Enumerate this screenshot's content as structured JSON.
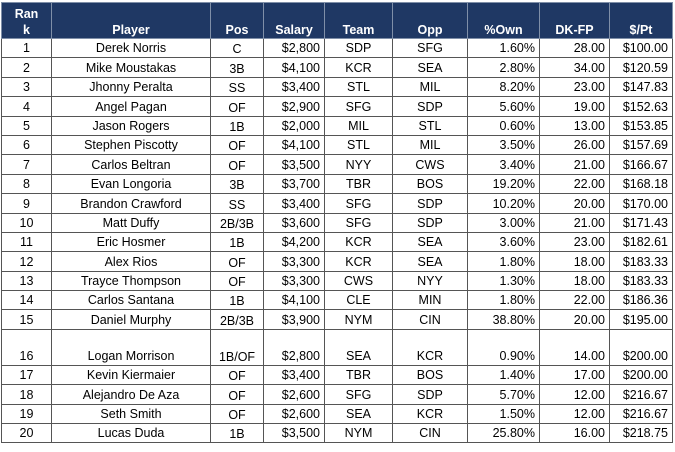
{
  "table": {
    "headers": {
      "rank": "Rank",
      "player": "Player",
      "pos": "Pos",
      "salary": "Salary",
      "team": "Team",
      "opp": "Opp",
      "own": "%Own",
      "dkfp": "DK-FP",
      "ppt": "$/Pt"
    },
    "rows": [
      {
        "rank": "1",
        "player": "Derek Norris",
        "pos": "C",
        "salary": "$2,800",
        "team": "SDP",
        "opp": "SFG",
        "own": "1.60%",
        "dkfp": "28.00",
        "ppt": "$100.00"
      },
      {
        "rank": "2",
        "player": "Mike Moustakas",
        "pos": "3B",
        "salary": "$4,100",
        "team": "KCR",
        "opp": "SEA",
        "own": "2.80%",
        "dkfp": "34.00",
        "ppt": "$120.59"
      },
      {
        "rank": "3",
        "player": "Jhonny Peralta",
        "pos": "SS",
        "salary": "$3,400",
        "team": "STL",
        "opp": "MIL",
        "own": "8.20%",
        "dkfp": "23.00",
        "ppt": "$147.83"
      },
      {
        "rank": "4",
        "player": "Angel Pagan",
        "pos": "OF",
        "salary": "$2,900",
        "team": "SFG",
        "opp": "SDP",
        "own": "5.60%",
        "dkfp": "19.00",
        "ppt": "$152.63"
      },
      {
        "rank": "5",
        "player": "Jason Rogers",
        "pos": "1B",
        "salary": "$2,000",
        "team": "MIL",
        "opp": "STL",
        "own": "0.60%",
        "dkfp": "13.00",
        "ppt": "$153.85"
      },
      {
        "rank": "6",
        "player": "Stephen Piscotty",
        "pos": "OF",
        "salary": "$4,100",
        "team": "STL",
        "opp": "MIL",
        "own": "3.50%",
        "dkfp": "26.00",
        "ppt": "$157.69"
      },
      {
        "rank": "7",
        "player": "Carlos Beltran",
        "pos": "OF",
        "salary": "$3,500",
        "team": "NYY",
        "opp": "CWS",
        "own": "3.40%",
        "dkfp": "21.00",
        "ppt": "$166.67"
      },
      {
        "rank": "8",
        "player": "Evan Longoria",
        "pos": "3B",
        "salary": "$3,700",
        "team": "TBR",
        "opp": "BOS",
        "own": "19.20%",
        "dkfp": "22.00",
        "ppt": "$168.18"
      },
      {
        "rank": "9",
        "player": "Brandon Crawford",
        "pos": "SS",
        "salary": "$3,400",
        "team": "SFG",
        "opp": "SDP",
        "own": "10.20%",
        "dkfp": "20.00",
        "ppt": "$170.00"
      },
      {
        "rank": "10",
        "player": "Matt Duffy",
        "pos": "2B/3B",
        "salary": "$3,600",
        "team": "SFG",
        "opp": "SDP",
        "own": "3.00%",
        "dkfp": "21.00",
        "ppt": "$171.43"
      },
      {
        "rank": "11",
        "player": "Eric Hosmer",
        "pos": "1B",
        "salary": "$4,200",
        "team": "KCR",
        "opp": "SEA",
        "own": "3.60%",
        "dkfp": "23.00",
        "ppt": "$182.61"
      },
      {
        "rank": "12",
        "player": "Alex Rios",
        "pos": "OF",
        "salary": "$3,300",
        "team": "KCR",
        "opp": "SEA",
        "own": "1.80%",
        "dkfp": "18.00",
        "ppt": "$183.33"
      },
      {
        "rank": "13",
        "player": "Trayce Thompson",
        "pos": "OF",
        "salary": "$3,300",
        "team": "CWS",
        "opp": "NYY",
        "own": "1.30%",
        "dkfp": "18.00",
        "ppt": "$183.33"
      },
      {
        "rank": "14",
        "player": "Carlos Santana",
        "pos": "1B",
        "salary": "$4,100",
        "team": "CLE",
        "opp": "MIN",
        "own": "1.80%",
        "dkfp": "22.00",
        "ppt": "$186.36"
      },
      {
        "rank": "15",
        "player": "Daniel Murphy",
        "pos": "2B/3B",
        "salary": "$3,900",
        "team": "NYM",
        "opp": "CIN",
        "own": "38.80%",
        "dkfp": "20.00",
        "ppt": "$195.00"
      },
      {
        "rank": "16",
        "player": "Logan Morrison",
        "pos": "1B/OF",
        "salary": "$2,800",
        "team": "SEA",
        "opp": "KCR",
        "own": "0.90%",
        "dkfp": "14.00",
        "ppt": "$200.00"
      },
      {
        "rank": "17",
        "player": "Kevin Kiermaier",
        "pos": "OF",
        "salary": "$3,400",
        "team": "TBR",
        "opp": "BOS",
        "own": "1.40%",
        "dkfp": "17.00",
        "ppt": "$200.00"
      },
      {
        "rank": "18",
        "player": "Alejandro De Aza",
        "pos": "OF",
        "salary": "$2,600",
        "team": "SFG",
        "opp": "SDP",
        "own": "5.70%",
        "dkfp": "12.00",
        "ppt": "$216.67"
      },
      {
        "rank": "19",
        "player": "Seth Smith",
        "pos": "OF",
        "salary": "$2,600",
        "team": "SEA",
        "opp": "KCR",
        "own": "1.50%",
        "dkfp": "12.00",
        "ppt": "$216.67"
      },
      {
        "rank": "20",
        "player": "Lucas Duda",
        "pos": "1B",
        "salary": "$3,500",
        "team": "NYM",
        "opp": "CIN",
        "own": "25.80%",
        "dkfp": "16.00",
        "ppt": "$218.75"
      }
    ]
  }
}
